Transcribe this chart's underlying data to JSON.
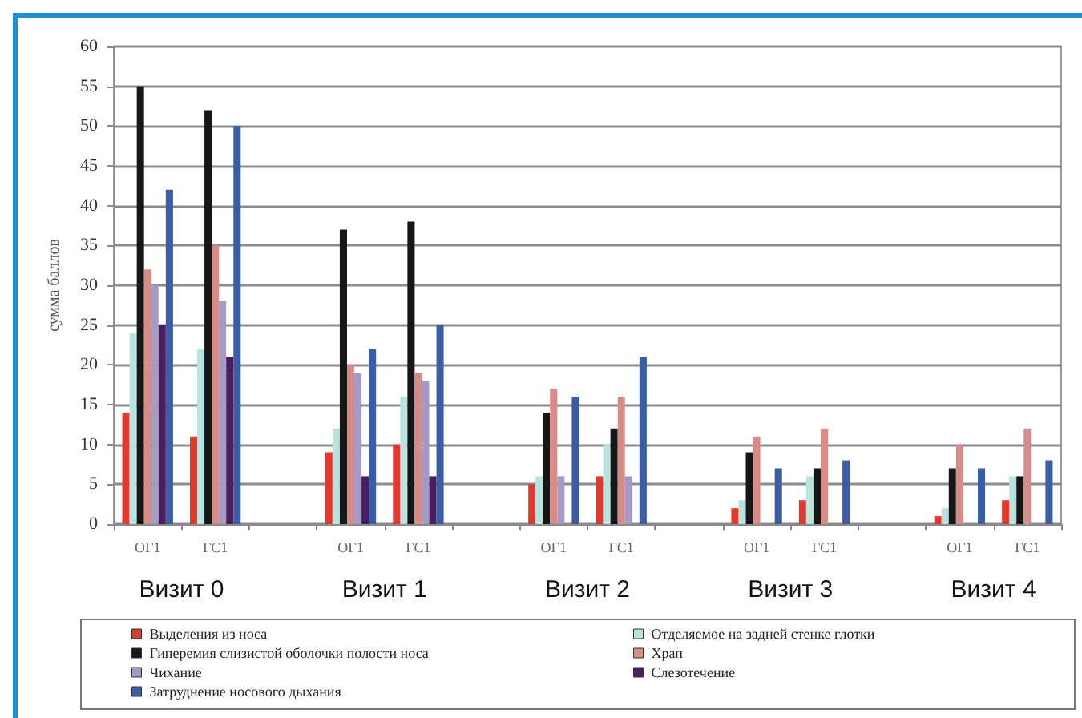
{
  "chart_data": {
    "type": "bar",
    "ylabel": "сумма баллов",
    "categories": [
      "ОГ1",
      "ГС1",
      null,
      "ОГ1",
      "ГС1",
      null,
      "ОГ1",
      "ГС1",
      null,
      "ОГ1",
      "ГС1",
      null,
      "ОГ1",
      "ГС1"
    ],
    "series": [
      {
        "name": "Выделения из носа",
        "color": "#e03a2e",
        "values": [
          14,
          11,
          null,
          9,
          10,
          null,
          5,
          6,
          null,
          2,
          3,
          null,
          1,
          3
        ]
      },
      {
        "name": "Отделяемое на задней стенке глотки",
        "color": "#b8e4e0",
        "values": [
          24,
          22,
          null,
          12,
          16,
          null,
          6,
          10,
          null,
          3,
          6,
          null,
          2,
          6
        ]
      },
      {
        "name": "Гиперемия слизистой оболочки полости носа",
        "color": "#161616",
        "values": [
          55,
          52,
          null,
          37,
          38,
          null,
          14,
          12,
          null,
          9,
          7,
          null,
          7,
          6
        ]
      },
      {
        "name": "Храп",
        "color": "#d98c86",
        "values": [
          32,
          35,
          null,
          20,
          19,
          null,
          17,
          16,
          null,
          11,
          12,
          null,
          10,
          12
        ]
      },
      {
        "name": "Чихание",
        "color": "#a39bc6",
        "values": [
          30,
          28,
          null,
          19,
          18,
          null,
          6,
          6,
          null,
          0,
          0,
          null,
          0,
          0
        ]
      },
      {
        "name": "Слезотечение",
        "color": "#4a1d5e",
        "values": [
          25,
          21,
          null,
          6,
          6,
          null,
          0,
          0,
          null,
          0,
          0,
          null,
          0,
          0
        ]
      },
      {
        "name": "Затруднение носового дыхания",
        "color": "#3b5ca6",
        "values": [
          42,
          50,
          null,
          22,
          25,
          null,
          16,
          21,
          null,
          7,
          8,
          null,
          7,
          8
        ]
      }
    ],
    "ylim": [
      0,
      60
    ],
    "yticks": [
      0,
      5,
      10,
      15,
      20,
      25,
      30,
      35,
      40,
      45,
      50,
      55,
      60
    ],
    "grid": "y",
    "legend": "bottom",
    "annotations": [
      "Визит 0",
      "Визит 1",
      "Визит 2",
      "Визит 3",
      "Визит 4"
    ]
  }
}
